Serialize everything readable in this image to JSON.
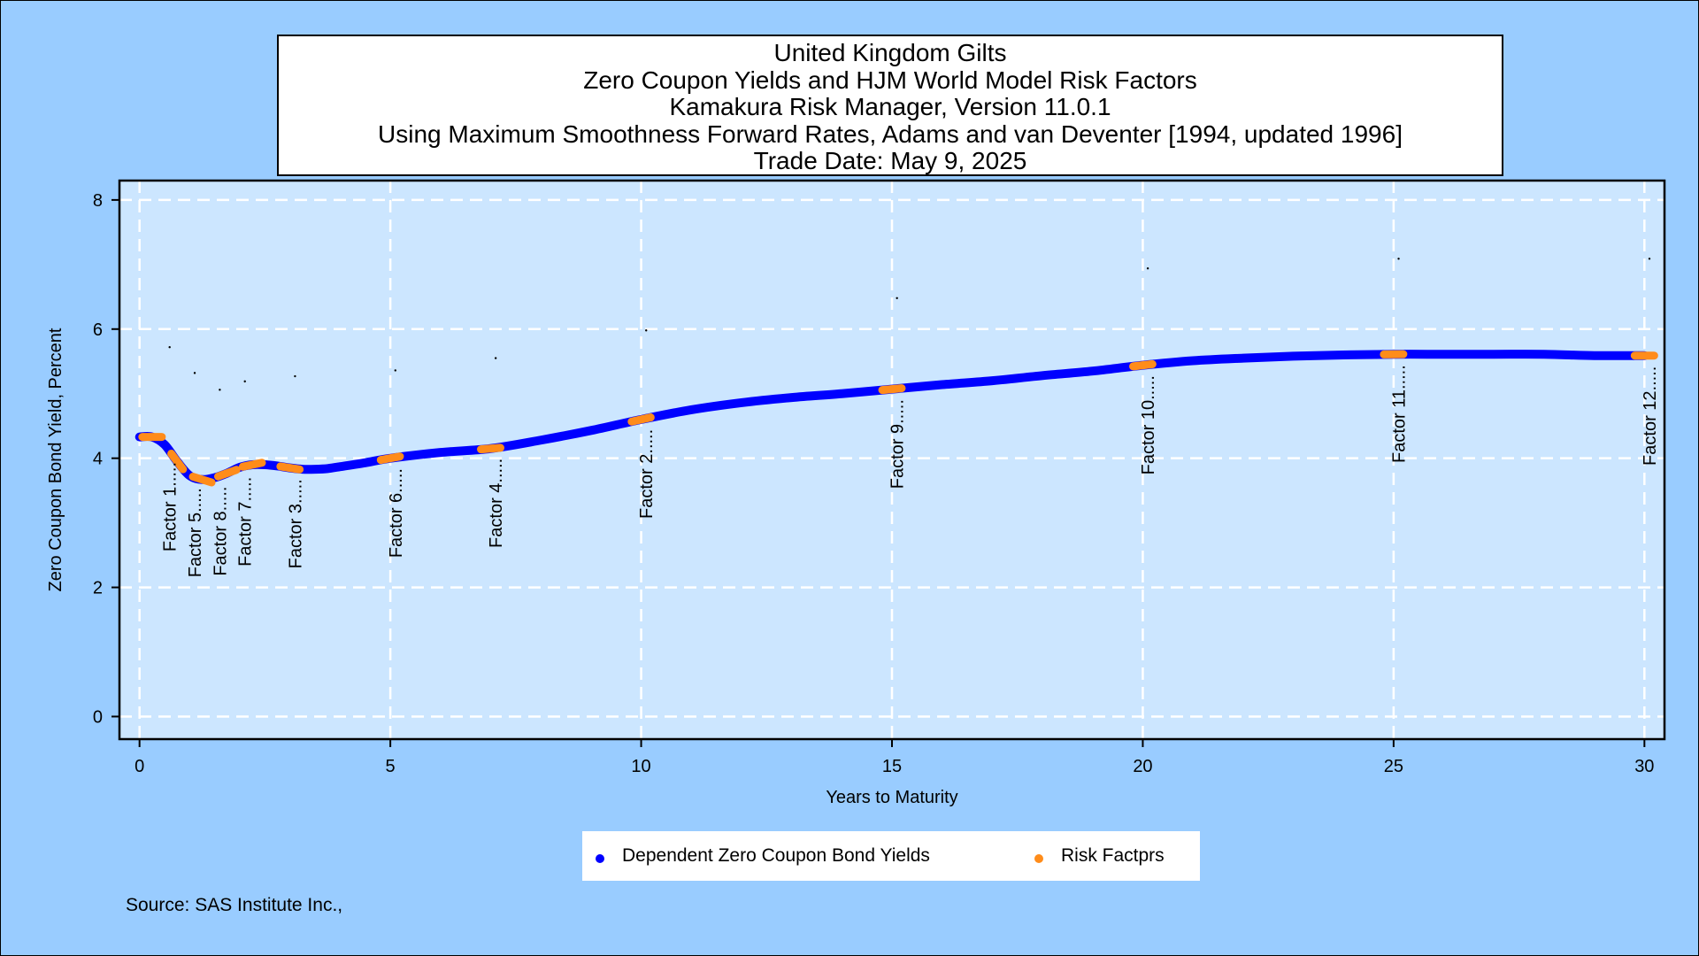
{
  "chart_data": {
    "type": "line",
    "title_lines": [
      "United Kingdom Gilts",
      "Zero Coupon Yields and HJM World Model Risk Factors",
      "Kamakura Risk Manager, Version 11.0.1",
      "Using Maximum Smoothness Forward Rates, Adams and van Deventer [1994, updated 1996]",
      "Trade Date: May 9, 2025"
    ],
    "xlabel": "Years to Maturity",
    "ylabel": "Zero Coupon Bond Yield, Percent",
    "xlim": [
      -0.4,
      30.4
    ],
    "ylim": [
      -0.35,
      8.3
    ],
    "xticks": [
      "0",
      "5",
      "10",
      "15",
      "20",
      "25",
      "30"
    ],
    "xtick_values": [
      0,
      5,
      10,
      15,
      20,
      25,
      30
    ],
    "yticks": [
      "0",
      "2",
      "4",
      "6",
      "8"
    ],
    "ytick_values": [
      0,
      2,
      4,
      6,
      8
    ],
    "grid": true,
    "legend_position": "bottom-center",
    "series": [
      {
        "name": "Dependent Zero Coupon Bond Yields",
        "color": "#0000ff",
        "x": [
          0,
          0.25,
          0.5,
          0.75,
          1.0,
          1.25,
          1.5,
          1.75,
          2.0,
          2.25,
          2.5,
          2.75,
          3.0,
          3.25,
          3.5,
          3.75,
          4.0,
          4.5,
          5.0,
          6.0,
          7.0,
          8.0,
          9.0,
          10.0,
          11.0,
          12.0,
          13.0,
          14.0,
          15.0,
          16.0,
          17.0,
          18.0,
          19.0,
          20.0,
          21.0,
          22.0,
          23.0,
          24.0,
          25.0,
          26.0,
          27.0,
          28.0,
          29.0,
          30.0
        ],
        "y": [
          4.33,
          4.33,
          4.21,
          3.95,
          3.73,
          3.67,
          3.7,
          3.77,
          3.86,
          3.9,
          3.9,
          3.88,
          3.85,
          3.83,
          3.83,
          3.84,
          3.87,
          3.93,
          4.0,
          4.09,
          4.15,
          4.28,
          4.43,
          4.6,
          4.75,
          4.86,
          4.94,
          5.0,
          5.07,
          5.14,
          5.2,
          5.28,
          5.35,
          5.44,
          5.51,
          5.55,
          5.58,
          5.6,
          5.61,
          5.61,
          5.61,
          5.61,
          5.59,
          5.59
        ]
      },
      {
        "name": "Risk Factprs",
        "color": "#ff8c1a",
        "x": [
          0.25,
          0.75,
          1.25,
          1.75,
          2.25,
          3.0,
          5.0,
          7.0,
          10.0,
          15.0,
          20.0,
          25.0,
          30.0
        ],
        "y": [
          4.33,
          3.95,
          3.67,
          3.77,
          3.9,
          3.85,
          4.0,
          4.15,
          4.6,
          5.07,
          5.44,
          5.61,
          5.59
        ]
      }
    ],
    "factor_labels": [
      {
        "text": "Factor 1.....",
        "x": 0.6,
        "y": 5.72
      },
      {
        "text": "Factor 5.....",
        "x": 1.1,
        "y": 5.32
      },
      {
        "text": "Factor 8.....",
        "x": 1.6,
        "y": 5.06
      },
      {
        "text": "Factor 7.....",
        "x": 2.1,
        "y": 5.19
      },
      {
        "text": "Factor 3.....",
        "x": 3.1,
        "y": 5.27
      },
      {
        "text": "Factor 6.....",
        "x": 5.1,
        "y": 5.36
      },
      {
        "text": "Factor 4.....",
        "x": 7.1,
        "y": 5.55
      },
      {
        "text": "Factor 2.....",
        "x": 10.1,
        "y": 5.98
      },
      {
        "text": "Factor 9.....",
        "x": 15.1,
        "y": 6.48
      },
      {
        "text": "Factor 10.....",
        "x": 20.1,
        "y": 6.94
      },
      {
        "text": "Factor 11.....",
        "x": 25.1,
        "y": 7.09
      },
      {
        "text": "Factor 12.....",
        "x": 30.1,
        "y": 7.09
      }
    ],
    "colors": {
      "background": "#99ccff",
      "plot_background": "#cce6ff",
      "grid": "#ffffff",
      "curve": "#0000ff",
      "factors": "#ff8c1a"
    }
  },
  "source": "Source: SAS Institute Inc.,"
}
